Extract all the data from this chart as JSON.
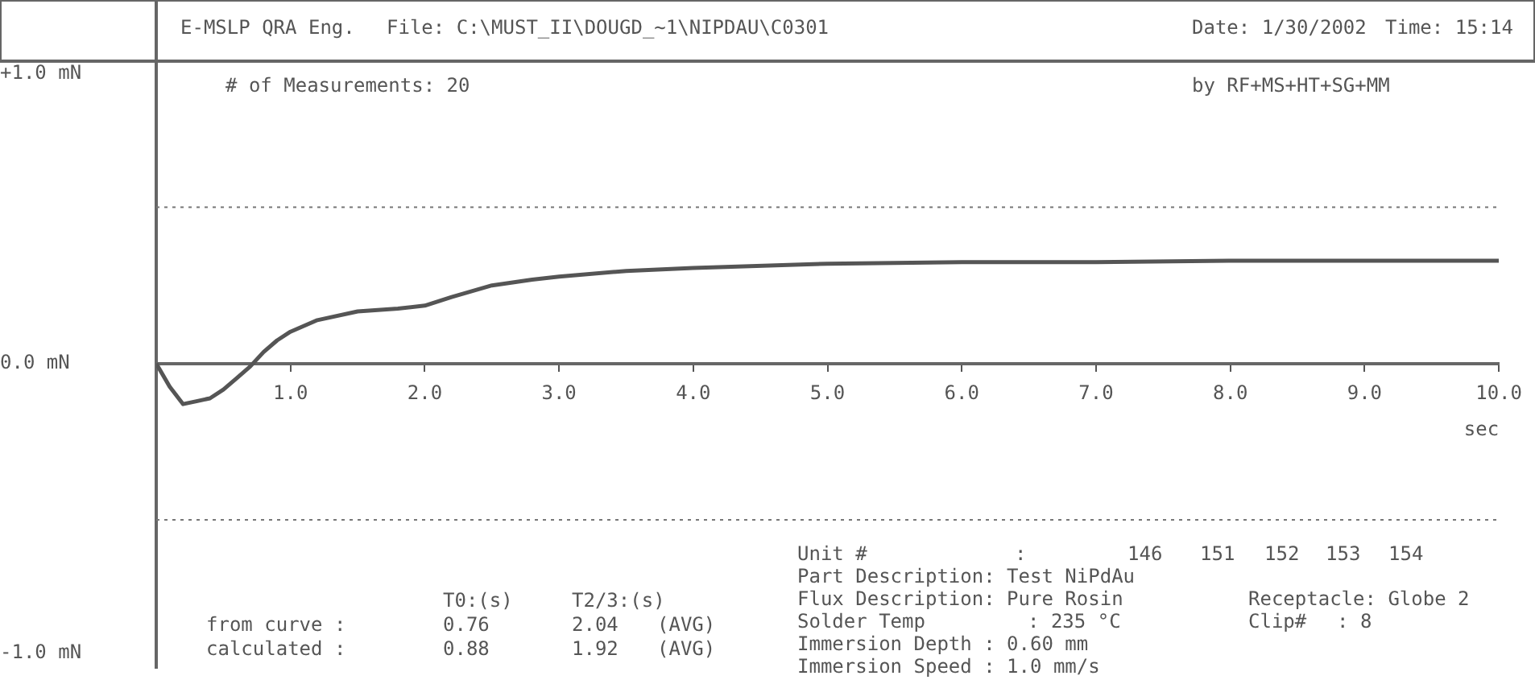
{
  "chart_data": {
    "type": "line",
    "marker": "none",
    "color": "#555555",
    "x": [
      0,
      0.1,
      0.2,
      0.3,
      0.4,
      0.5,
      0.6,
      0.7,
      0.8,
      0.9,
      1.0,
      1.2,
      1.5,
      1.8,
      2.0,
      2.2,
      2.5,
      2.8,
      3.0,
      3.5,
      4.0,
      5.0,
      6.0,
      7.0,
      8.0,
      9.0,
      10.0
    ],
    "values": [
      0,
      -0.08,
      -0.14,
      -0.13,
      -0.12,
      -0.09,
      -0.05,
      -0.01,
      0.04,
      0.08,
      0.11,
      0.15,
      0.18,
      0.19,
      0.2,
      0.23,
      0.27,
      0.29,
      0.3,
      0.32,
      0.33,
      0.345,
      0.35,
      0.35,
      0.355,
      0.355,
      0.355
    ],
    "xlim": [
      0,
      10
    ],
    "xticks": [
      {
        "value": 0,
        "label": null
      },
      {
        "value": 1,
        "label": "1.0"
      },
      {
        "value": 2,
        "label": "2.0"
      },
      {
        "value": 3,
        "label": "3.0"
      },
      {
        "value": 4,
        "label": "4.0"
      },
      {
        "value": 5,
        "label": "5.0"
      },
      {
        "value": 6,
        "label": "6.0"
      },
      {
        "value": 7,
        "label": "7.0"
      },
      {
        "value": 8,
        "label": "8.0"
      },
      {
        "value": 9,
        "label": "9.0"
      },
      {
        "value": 10,
        "label": "10.0"
      }
    ],
    "ylim": [
      -1.05,
      1.05
    ],
    "yticks": [
      {
        "value": -1,
        "label": "-1.0 mN"
      },
      {
        "value": 0,
        "label": "0.0 mN"
      },
      {
        "value": 1,
        "label": "+1.0 mN"
      }
    ],
    "xlabel": "sec",
    "ref_lines": [
      {
        "axis": "y",
        "value": 0.54,
        "line_style": "dotted"
      },
      {
        "axis": "y",
        "value": -0.54,
        "line_style": "dotted"
      }
    ],
    "annotations": [
      "E-MSLP QRA Eng.",
      "File: C:\\MUST_II\\DOUGD_~1\\NIPDAU\\C0301",
      "Date: 1/30/2002",
      "Time: 15:14",
      "# of Measurements: 20",
      "by RF+MS+HT+SG+MM",
      "T0:(s)",
      "T2/3:(s)",
      "from curve :",
      "0.76",
      "2.04",
      "(AVG)",
      "calculated :",
      "0.88",
      "1.92",
      "(AVG)",
      "Unit #",
      ":",
      "146",
      "151",
      "152",
      "153",
      "154",
      "Part Description: Test NiPdAu",
      "Flux Description: Pure Rosin",
      "Receptacle: Globe 2",
      "Solder Temp",
      ": 235 °C",
      "Clip#",
      ": 8",
      "Immersion Depth : 0.60 mm",
      "Immersion Speed : 1.0 mm/s"
    ]
  }
}
